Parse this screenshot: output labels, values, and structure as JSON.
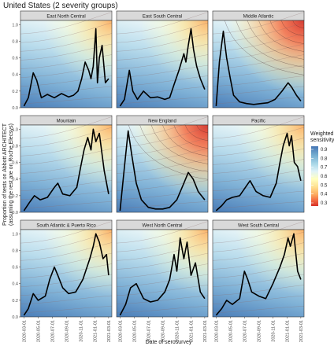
{
  "figure": {
    "title": "United States (2 severity groups)",
    "xlabel": "Date of serosurvey",
    "ylabel_line1": "Proportion of tests on Abbott ARCHITECT",
    "ylabel_line2": "(assuming the rest are on Roche Elecsys)"
  },
  "legend": {
    "title_line1": "Weighted",
    "title_line2": "sensitivity",
    "ticks": [
      "0.9",
      "0.8",
      "0.7",
      "0.6",
      "0.5",
      "0.4",
      "0.3"
    ],
    "colors": [
      "#4575b4",
      "#74add1",
      "#abd9e9",
      "#e0f3f8",
      "#ffffbf",
      "#fee090",
      "#fdae61",
      "#f46d43",
      "#d73027"
    ]
  },
  "chart_data": {
    "type": "line",
    "x_ticks": [
      "2020-03-01",
      "2020-05-01",
      "2020-07-01",
      "2020-09-01",
      "2020-11-01",
      "2021-01-01",
      "2021-03-01"
    ],
    "y_ticks": [
      "0.0",
      "0.2",
      "0.4",
      "0.6",
      "0.8",
      "1.0"
    ],
    "xlim": [
      "2020-02-15",
      "2021-03-15"
    ],
    "ylim": [
      0,
      1.05
    ],
    "color_scale": {
      "name": "Weighted sensitivity",
      "range": [
        0.3,
        0.9
      ]
    },
    "panels": [
      {
        "name": "East North Central",
        "x": [
          "2020-03-01",
          "2020-03-20",
          "2020-04-10",
          "2020-04-25",
          "2020-05-15",
          "2020-06-10",
          "2020-07-10",
          "2020-08-10",
          "2020-09-10",
          "2020-10-01",
          "2020-10-20",
          "2020-11-05",
          "2020-11-20",
          "2020-12-05",
          "2020-12-15",
          "2020-12-25",
          "2021-01-05",
          "2021-01-12",
          "2021-01-20",
          "2021-02-01",
          "2021-02-15",
          "2021-03-01"
        ],
        "values": [
          0.02,
          0.12,
          0.42,
          0.33,
          0.12,
          0.16,
          0.12,
          0.17,
          0.13,
          0.15,
          0.2,
          0.35,
          0.55,
          0.45,
          0.35,
          0.5,
          0.95,
          0.3,
          0.6,
          0.75,
          0.3,
          0.35
        ]
      },
      {
        "name": "East South Central",
        "x": [
          "2020-03-01",
          "2020-03-20",
          "2020-04-10",
          "2020-04-25",
          "2020-05-15",
          "2020-06-10",
          "2020-07-10",
          "2020-08-10",
          "2020-09-10",
          "2020-10-01",
          "2020-10-20",
          "2020-11-10",
          "2020-12-01",
          "2020-12-10",
          "2020-12-20",
          "2021-01-01",
          "2021-01-12",
          "2021-01-25",
          "2021-02-10",
          "2021-03-01"
        ],
        "values": [
          0.02,
          0.1,
          0.45,
          0.2,
          0.1,
          0.2,
          0.12,
          0.13,
          0.1,
          0.12,
          0.28,
          0.45,
          0.65,
          0.55,
          0.75,
          0.95,
          0.7,
          0.5,
          0.35,
          0.22
        ]
      },
      {
        "name": "Middle Atlantic",
        "x": [
          "2020-03-01",
          "2020-03-15",
          "2020-04-01",
          "2020-04-15",
          "2020-05-01",
          "2020-05-15",
          "2020-06-10",
          "2020-07-10",
          "2020-08-10",
          "2020-09-10",
          "2020-10-10",
          "2020-11-10",
          "2020-12-10",
          "2021-01-05",
          "2021-01-20",
          "2021-02-10",
          "2021-03-01"
        ],
        "values": [
          0.02,
          0.55,
          0.92,
          0.6,
          0.35,
          0.15,
          0.07,
          0.05,
          0.04,
          0.05,
          0.06,
          0.1,
          0.2,
          0.3,
          0.25,
          0.15,
          0.08
        ]
      },
      {
        "name": "Mountain",
        "x": [
          "2020-03-01",
          "2020-03-25",
          "2020-04-15",
          "2020-05-10",
          "2020-06-10",
          "2020-07-10",
          "2020-07-25",
          "2020-08-15",
          "2020-09-15",
          "2020-10-15",
          "2020-11-01",
          "2020-11-15",
          "2020-12-01",
          "2020-12-15",
          "2020-12-25",
          "2021-01-05",
          "2021-01-20",
          "2021-02-10",
          "2021-03-01"
        ],
        "values": [
          0.02,
          0.12,
          0.2,
          0.15,
          0.18,
          0.3,
          0.35,
          0.22,
          0.2,
          0.3,
          0.55,
          0.75,
          0.9,
          0.75,
          1.0,
          0.85,
          0.95,
          0.5,
          0.22
        ]
      },
      {
        "name": "New England",
        "x": [
          "2020-03-01",
          "2020-03-20",
          "2020-04-05",
          "2020-04-20",
          "2020-05-10",
          "2020-06-01",
          "2020-07-01",
          "2020-08-01",
          "2020-09-01",
          "2020-10-01",
          "2020-11-01",
          "2020-12-01",
          "2020-12-20",
          "2021-01-10",
          "2021-02-01",
          "2021-03-01"
        ],
        "values": [
          0.02,
          0.55,
          0.98,
          0.7,
          0.35,
          0.15,
          0.06,
          0.04,
          0.04,
          0.06,
          0.15,
          0.35,
          0.48,
          0.4,
          0.25,
          0.15
        ]
      },
      {
        "name": "Pacific",
        "x": [
          "2020-03-01",
          "2020-03-25",
          "2020-04-15",
          "2020-05-10",
          "2020-06-10",
          "2020-07-10",
          "2020-07-25",
          "2020-08-20",
          "2020-09-20",
          "2020-10-20",
          "2020-11-15",
          "2020-12-01",
          "2020-12-15",
          "2021-01-01",
          "2021-01-10",
          "2021-01-20",
          "2021-02-01",
          "2021-02-15",
          "2021-03-01"
        ],
        "values": [
          0.02,
          0.08,
          0.15,
          0.18,
          0.2,
          0.32,
          0.38,
          0.25,
          0.2,
          0.18,
          0.35,
          0.6,
          0.8,
          0.95,
          0.8,
          0.92,
          0.6,
          0.55,
          0.38
        ]
      },
      {
        "name": "South Atlantic & Puerto Rico",
        "x": [
          "2020-03-01",
          "2020-03-20",
          "2020-04-10",
          "2020-05-01",
          "2020-06-01",
          "2020-06-20",
          "2020-07-10",
          "2020-07-25",
          "2020-08-15",
          "2020-09-10",
          "2020-10-10",
          "2020-11-10",
          "2020-12-10",
          "2020-12-25",
          "2021-01-05",
          "2021-01-20",
          "2021-02-05",
          "2021-02-20",
          "2021-03-01"
        ],
        "values": [
          0.02,
          0.1,
          0.28,
          0.2,
          0.25,
          0.45,
          0.6,
          0.5,
          0.35,
          0.28,
          0.3,
          0.45,
          0.7,
          0.85,
          1.0,
          0.9,
          0.7,
          0.75,
          0.5
        ]
      },
      {
        "name": "West North Central",
        "x": [
          "2020-03-01",
          "2020-03-25",
          "2020-04-15",
          "2020-05-10",
          "2020-06-10",
          "2020-07-10",
          "2020-08-10",
          "2020-09-10",
          "2020-10-01",
          "2020-10-20",
          "2020-11-01",
          "2020-11-15",
          "2020-12-01",
          "2020-12-15",
          "2021-01-01",
          "2021-01-20",
          "2021-02-10",
          "2021-03-01"
        ],
        "values": [
          0.02,
          0.15,
          0.35,
          0.4,
          0.22,
          0.18,
          0.2,
          0.3,
          0.45,
          0.75,
          0.55,
          0.95,
          0.7,
          0.9,
          0.5,
          0.65,
          0.3,
          0.22
        ]
      },
      {
        "name": "West South Central",
        "x": [
          "2020-03-01",
          "2020-03-25",
          "2020-04-15",
          "2020-05-10",
          "2020-06-10",
          "2020-07-01",
          "2020-07-15",
          "2020-08-01",
          "2020-09-01",
          "2020-10-01",
          "2020-11-01",
          "2020-12-01",
          "2020-12-20",
          "2021-01-05",
          "2021-01-15",
          "2021-01-30",
          "2021-02-15",
          "2021-03-01"
        ],
        "values": [
          0.02,
          0.1,
          0.2,
          0.15,
          0.22,
          0.55,
          0.45,
          0.3,
          0.25,
          0.22,
          0.4,
          0.6,
          0.75,
          0.95,
          0.85,
          1.0,
          0.55,
          0.45
        ]
      }
    ]
  }
}
